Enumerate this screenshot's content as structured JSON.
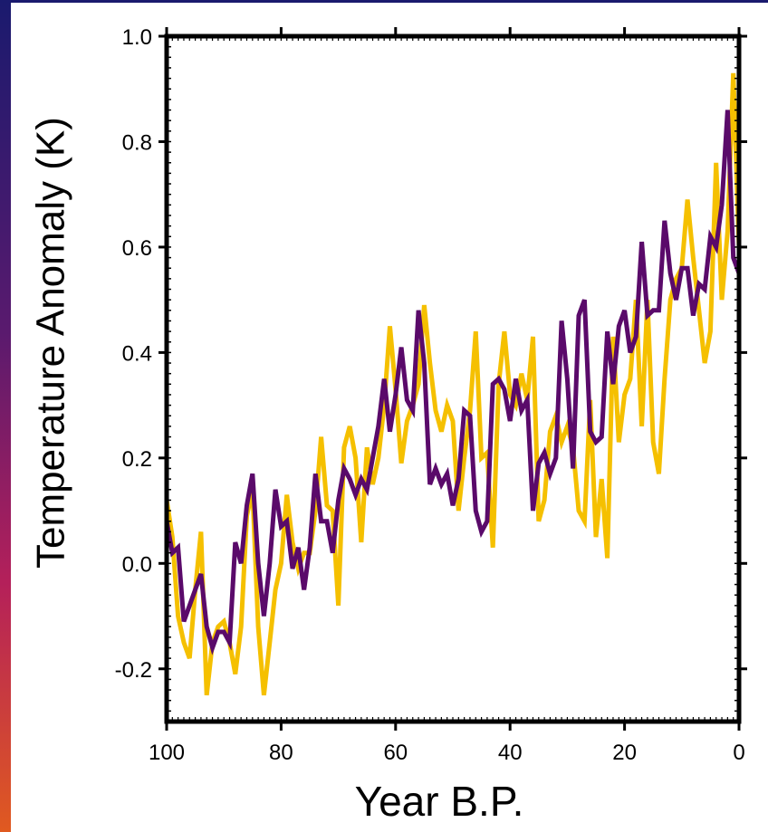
{
  "chart_data": {
    "type": "line",
    "title": "",
    "xlabel": "Year B.P.",
    "ylabel": "Temperature Anomaly (K)",
    "xlim": [
      100,
      0
    ],
    "ylim": [
      -0.3,
      1.0
    ],
    "x_ticks": [
      100,
      80,
      60,
      40,
      20,
      0
    ],
    "x_tick_labels": [
      "100",
      "80",
      "60",
      "40",
      "20",
      "0"
    ],
    "y_ticks": [
      -0.2,
      0.0,
      0.2,
      0.4,
      0.6,
      0.8,
      1.0
    ],
    "y_tick_labels": [
      "-0.2",
      "0.0",
      "0.2",
      "0.4",
      "0.6",
      "0.8",
      "1.0"
    ],
    "grid": false,
    "legend": "none",
    "series": [
      {
        "color": "#f5c000",
        "x": [
          100,
          99,
          98,
          97,
          96,
          95,
          94,
          93,
          92,
          91,
          90,
          89,
          88,
          87,
          86,
          85,
          84,
          83,
          82,
          81,
          80,
          79,
          78,
          77,
          76,
          75,
          74,
          73,
          72,
          71,
          70,
          69,
          68,
          67,
          66,
          65,
          64,
          63,
          62,
          61,
          60,
          59,
          58,
          57,
          56,
          55,
          54,
          53,
          52,
          51,
          50,
          49,
          48,
          47,
          46,
          45,
          44,
          43,
          42,
          41,
          40,
          39,
          38,
          37,
          36,
          35,
          34,
          33,
          32,
          31,
          30,
          29,
          28,
          27,
          26,
          25,
          24,
          23,
          22,
          21,
          20,
          19,
          18,
          17,
          16,
          15,
          14,
          13,
          12,
          11,
          10,
          9,
          8,
          7,
          6,
          5,
          4,
          3,
          2,
          1,
          0
        ],
        "y": [
          0.12,
          0.05,
          -0.1,
          -0.15,
          -0.18,
          -0.05,
          0.06,
          -0.25,
          -0.15,
          -0.12,
          -0.11,
          -0.15,
          -0.21,
          -0.12,
          0.09,
          0.14,
          -0.12,
          -0.25,
          -0.15,
          -0.05,
          0.0,
          0.13,
          0.04,
          -0.01,
          0.02,
          0.02,
          0.1,
          0.24,
          0.11,
          0.1,
          -0.08,
          0.22,
          0.26,
          0.2,
          0.04,
          0.22,
          0.15,
          0.2,
          0.3,
          0.45,
          0.33,
          0.19,
          0.27,
          0.3,
          0.34,
          0.49,
          0.38,
          0.29,
          0.25,
          0.3,
          0.27,
          0.1,
          0.2,
          0.29,
          0.44,
          0.2,
          0.21,
          0.03,
          0.34,
          0.44,
          0.32,
          0.3,
          0.36,
          0.31,
          0.43,
          0.08,
          0.12,
          0.25,
          0.28,
          0.23,
          0.26,
          0.22,
          0.1,
          0.08,
          0.31,
          0.05,
          0.16,
          0.01,
          0.43,
          0.23,
          0.32,
          0.35,
          0.5,
          0.26,
          0.5,
          0.23,
          0.17,
          0.35,
          0.5,
          0.54,
          0.56,
          0.69,
          0.58,
          0.48,
          0.38,
          0.44,
          0.76,
          0.5,
          0.63,
          0.93,
          0.6
        ]
      },
      {
        "color": "#5a0a6a",
        "x": [
          100,
          99,
          98,
          97,
          96,
          95,
          94,
          93,
          92,
          91,
          90,
          89,
          88,
          87,
          86,
          85,
          84,
          83,
          82,
          81,
          80,
          79,
          78,
          77,
          76,
          75,
          74,
          73,
          72,
          71,
          70,
          69,
          68,
          67,
          66,
          65,
          64,
          63,
          62,
          61,
          60,
          59,
          58,
          57,
          56,
          55,
          54,
          53,
          52,
          51,
          50,
          49,
          48,
          47,
          46,
          45,
          44,
          43,
          42,
          41,
          40,
          39,
          38,
          37,
          36,
          35,
          34,
          33,
          32,
          31,
          30,
          29,
          28,
          27,
          26,
          25,
          24,
          23,
          22,
          21,
          20,
          19,
          18,
          17,
          16,
          15,
          14,
          13,
          12,
          11,
          10,
          9,
          8,
          7,
          6,
          5,
          4,
          3,
          2,
          1,
          0
        ],
        "y": [
          0.08,
          0.02,
          0.03,
          -0.11,
          -0.08,
          -0.05,
          -0.02,
          -0.12,
          -0.16,
          -0.13,
          -0.13,
          -0.15,
          0.04,
          0.0,
          0.11,
          0.17,
          0.0,
          -0.1,
          0.0,
          0.14,
          0.07,
          0.08,
          -0.01,
          0.03,
          -0.05,
          0.03,
          0.17,
          0.08,
          0.08,
          0.02,
          0.12,
          0.18,
          0.16,
          0.13,
          0.16,
          0.14,
          0.2,
          0.26,
          0.35,
          0.25,
          0.32,
          0.41,
          0.31,
          0.29,
          0.48,
          0.38,
          0.15,
          0.18,
          0.15,
          0.17,
          0.11,
          0.16,
          0.29,
          0.28,
          0.1,
          0.06,
          0.08,
          0.34,
          0.35,
          0.33,
          0.27,
          0.35,
          0.29,
          0.31,
          0.1,
          0.19,
          0.21,
          0.17,
          0.2,
          0.46,
          0.35,
          0.18,
          0.47,
          0.5,
          0.25,
          0.23,
          0.24,
          0.44,
          0.34,
          0.45,
          0.48,
          0.4,
          0.43,
          0.61,
          0.47,
          0.48,
          0.48,
          0.65,
          0.55,
          0.5,
          0.56,
          0.56,
          0.47,
          0.53,
          0.52,
          0.62,
          0.6,
          0.68,
          0.86,
          0.58,
          0.55
        ]
      }
    ]
  }
}
